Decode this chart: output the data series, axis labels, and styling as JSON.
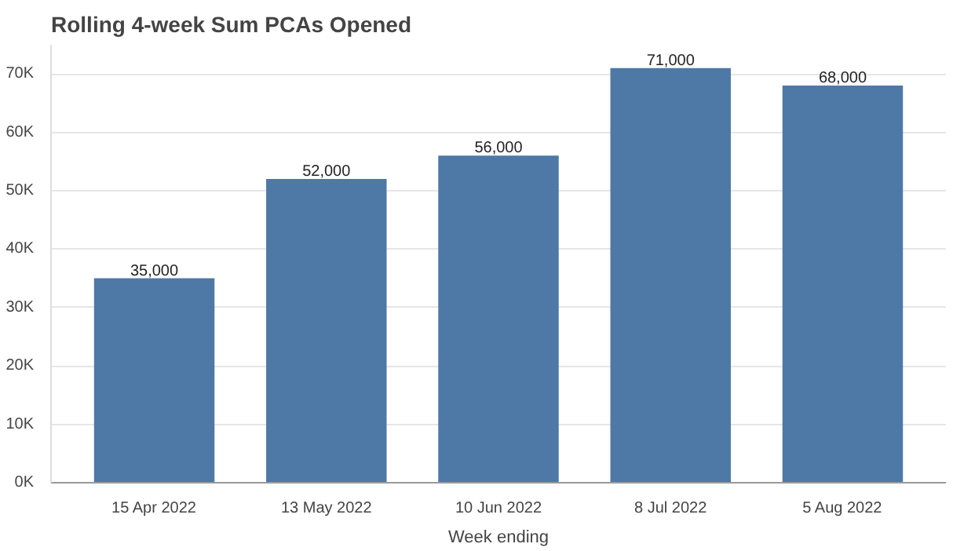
{
  "chart_data": {
    "type": "bar",
    "title": "Rolling 4-week Sum PCAs Opened",
    "xlabel": "Week ending",
    "categories": [
      "15 Apr 2022",
      "13 May 2022",
      "10 Jun 2022",
      "8 Jul 2022",
      "5 Aug 2022"
    ],
    "values": [
      35000,
      52000,
      56000,
      71000,
      68000
    ],
    "color": "#4e78a6",
    "ylim": [
      0,
      75000
    ],
    "yticks": [
      {
        "value": 0,
        "label": "0K"
      },
      {
        "value": 10000,
        "label": "10K"
      },
      {
        "value": 20000,
        "label": "20K"
      },
      {
        "value": 30000,
        "label": "30K"
      },
      {
        "value": 40000,
        "label": "40K"
      },
      {
        "value": 50000,
        "label": "50K"
      },
      {
        "value": 60000,
        "label": "60K"
      },
      {
        "value": 70000,
        "label": "70K"
      }
    ],
    "value_labels": [
      "35,000",
      "52,000",
      "56,000",
      "71,000",
      "68,000"
    ],
    "grid": "y"
  }
}
